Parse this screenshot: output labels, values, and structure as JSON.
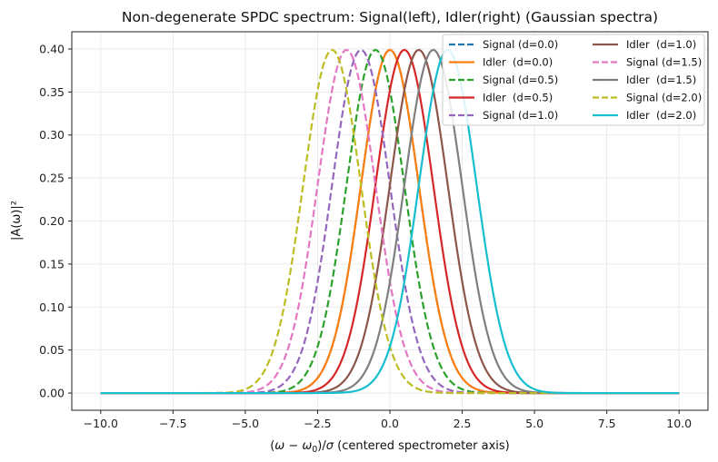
{
  "chart_data": {
    "type": "line",
    "title": "Non-degenerate SPDC spectrum: Signal(left), Idler(right) (Gaussian spectra)",
    "xlabel_parts": [
      "(",
      "ω",
      " − ",
      "ω",
      "0",
      ")/",
      "σ",
      "  (centered spectrometer axis)"
    ],
    "ylabel": "|A(ω)|²",
    "xlim": [
      -11,
      11
    ],
    "ylim": [
      -0.02,
      0.42
    ],
    "xticks": [
      -10.0,
      -7.5,
      -5.0,
      -2.5,
      0.0,
      2.5,
      5.0,
      7.5,
      10.0
    ],
    "xtick_labels": [
      "−10.0",
      "−7.5",
      "−5.0",
      "−2.5",
      "0.0",
      "2.5",
      "5.0",
      "7.5",
      "10.0"
    ],
    "yticks": [
      0.0,
      0.05,
      0.1,
      0.15,
      0.2,
      0.25,
      0.3,
      0.35,
      0.4
    ],
    "ytick_labels": [
      "0.00",
      "0.05",
      "0.10",
      "0.15",
      "0.20",
      "0.25",
      "0.30",
      "0.35",
      "0.40"
    ],
    "grid": true,
    "legend_location": "upper right",
    "legend_columns": 2,
    "x_range": [
      -10,
      10
    ],
    "peak": 0.3989,
    "sigma": 1.0,
    "series": [
      {
        "name": "Signal (d=0.0)",
        "center": 0.0,
        "color": "#1f77b4",
        "dash": true
      },
      {
        "name": "Idler  (d=0.0)",
        "center": 0.0,
        "color": "#ff7f0e",
        "dash": false
      },
      {
        "name": "Signal (d=0.5)",
        "center": -0.5,
        "color": "#2ca02c",
        "dash": true
      },
      {
        "name": "Idler  (d=0.5)",
        "center": 0.5,
        "color": "#d62728",
        "dash": false
      },
      {
        "name": "Signal (d=1.0)",
        "center": -1.0,
        "color": "#9467bd",
        "dash": true
      },
      {
        "name": "Idler  (d=1.0)",
        "center": 1.0,
        "color": "#8c564b",
        "dash": false
      },
      {
        "name": "Signal (d=1.5)",
        "center": -1.5,
        "color": "#e377c2",
        "dash": true
      },
      {
        "name": "Idler  (d=1.5)",
        "center": 1.5,
        "color": "#7f7f7f",
        "dash": false
      },
      {
        "name": "Signal (d=2.0)",
        "center": -2.0,
        "color": "#bcbd22",
        "dash": true
      },
      {
        "name": "Idler  (d=2.0)",
        "center": 2.0,
        "color": "#17becf",
        "dash": false
      }
    ]
  }
}
